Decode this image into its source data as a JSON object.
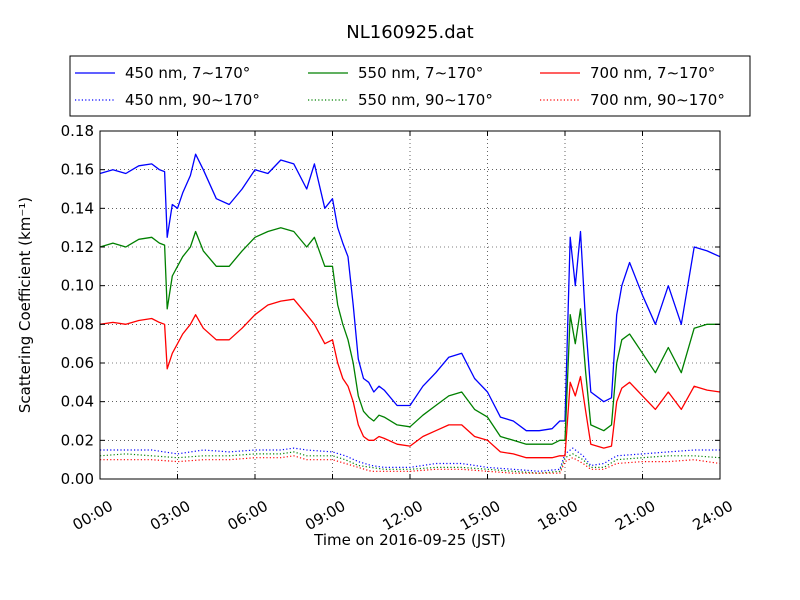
{
  "chart_data": {
    "type": "line",
    "title": "NL160925.dat",
    "xlabel": "Time on 2016-09-25 (JST)",
    "ylabel": "Scattering Coefficient (km⁻¹)",
    "xlim": [
      0,
      24
    ],
    "ylim": [
      0.0,
      0.18
    ],
    "x_tick_labels": [
      "00:00",
      "03:00",
      "06:00",
      "09:00",
      "12:00",
      "15:00",
      "18:00",
      "21:00",
      "24:00"
    ],
    "y_tick_labels": [
      "0.00",
      "0.02",
      "0.04",
      "0.06",
      "0.08",
      "0.10",
      "0.12",
      "0.14",
      "0.16",
      "0.18"
    ],
    "grid": true,
    "legend": "top, above plot, 3 columns",
    "x_unit": "hours",
    "series": [
      {
        "name": "450 nm, 7∼170°",
        "color": "#0000ff",
        "style": "solid",
        "x": [
          0,
          0.5,
          1,
          1.5,
          2,
          2.3,
          2.5,
          2.6,
          2.8,
          3,
          3.2,
          3.5,
          3.7,
          4,
          4.5,
          5,
          5.5,
          6,
          6.5,
          7,
          7.5,
          8,
          8.3,
          8.7,
          9,
          9.2,
          9.4,
          9.6,
          9.8,
          10,
          10.2,
          10.4,
          10.6,
          10.8,
          11,
          11.5,
          12,
          12.5,
          13,
          13.5,
          14,
          14.5,
          15,
          15.5,
          16,
          16.5,
          17,
          17.5,
          17.8,
          18,
          18.2,
          18.4,
          18.6,
          18.8,
          19,
          19.5,
          19.8,
          20,
          20.2,
          20.5,
          21,
          21.5,
          22,
          22.5,
          23,
          23.5,
          24
        ],
        "y": [
          0.158,
          0.16,
          0.158,
          0.162,
          0.163,
          0.16,
          0.159,
          0.125,
          0.142,
          0.14,
          0.148,
          0.157,
          0.168,
          0.16,
          0.145,
          0.142,
          0.15,
          0.16,
          0.158,
          0.165,
          0.163,
          0.15,
          0.163,
          0.14,
          0.145,
          0.13,
          0.122,
          0.115,
          0.09,
          0.062,
          0.052,
          0.05,
          0.045,
          0.048,
          0.046,
          0.038,
          0.038,
          0.048,
          0.055,
          0.063,
          0.065,
          0.052,
          0.045,
          0.032,
          0.03,
          0.025,
          0.025,
          0.026,
          0.03,
          0.03,
          0.125,
          0.1,
          0.128,
          0.08,
          0.045,
          0.04,
          0.042,
          0.085,
          0.1,
          0.112,
          0.095,
          0.08,
          0.1,
          0.08,
          0.12,
          0.118,
          0.115
        ]
      },
      {
        "name": "450 nm, 90∼170°",
        "color": "#0000ff",
        "style": "dotted",
        "x": [
          0,
          1,
          2,
          3,
          4,
          5,
          6,
          7,
          7.5,
          8,
          9,
          9.5,
          10,
          10.5,
          11,
          12,
          13,
          14,
          15,
          16,
          17,
          17.8,
          18,
          18.3,
          18.7,
          19,
          19.5,
          20,
          21,
          22,
          23,
          24
        ],
        "y": [
          0.015,
          0.015,
          0.015,
          0.013,
          0.015,
          0.014,
          0.015,
          0.015,
          0.016,
          0.015,
          0.014,
          0.012,
          0.009,
          0.007,
          0.006,
          0.006,
          0.008,
          0.008,
          0.006,
          0.005,
          0.004,
          0.005,
          0.013,
          0.016,
          0.012,
          0.007,
          0.008,
          0.012,
          0.013,
          0.014,
          0.015,
          0.015
        ]
      },
      {
        "name": "550 nm, 7∼170°",
        "color": "#008000",
        "style": "solid",
        "x": [
          0,
          0.5,
          1,
          1.5,
          2,
          2.3,
          2.5,
          2.6,
          2.8,
          3,
          3.2,
          3.5,
          3.7,
          4,
          4.5,
          5,
          5.5,
          6,
          6.5,
          7,
          7.5,
          8,
          8.3,
          8.7,
          9,
          9.2,
          9.4,
          9.6,
          9.8,
          10,
          10.2,
          10.4,
          10.6,
          10.8,
          11,
          11.5,
          12,
          12.5,
          13,
          13.5,
          14,
          14.5,
          15,
          15.5,
          16,
          16.5,
          17,
          17.5,
          17.8,
          18,
          18.2,
          18.4,
          18.6,
          18.8,
          19,
          19.5,
          19.8,
          20,
          20.2,
          20.5,
          21,
          21.5,
          22,
          22.5,
          23,
          23.5,
          24
        ],
        "y": [
          0.12,
          0.122,
          0.12,
          0.124,
          0.125,
          0.122,
          0.121,
          0.088,
          0.105,
          0.11,
          0.115,
          0.12,
          0.128,
          0.118,
          0.11,
          0.11,
          0.118,
          0.125,
          0.128,
          0.13,
          0.128,
          0.12,
          0.125,
          0.11,
          0.11,
          0.09,
          0.08,
          0.072,
          0.06,
          0.043,
          0.035,
          0.032,
          0.03,
          0.033,
          0.032,
          0.028,
          0.027,
          0.033,
          0.038,
          0.043,
          0.045,
          0.036,
          0.032,
          0.022,
          0.02,
          0.018,
          0.018,
          0.018,
          0.02,
          0.02,
          0.085,
          0.07,
          0.088,
          0.055,
          0.028,
          0.025,
          0.028,
          0.06,
          0.072,
          0.075,
          0.065,
          0.055,
          0.068,
          0.055,
          0.078,
          0.08,
          0.08
        ]
      },
      {
        "name": "550 nm, 90∼170°",
        "color": "#008000",
        "style": "dotted",
        "x": [
          0,
          1,
          2,
          3,
          4,
          5,
          6,
          7,
          7.5,
          8,
          9,
          9.5,
          10,
          10.5,
          11,
          12,
          13,
          14,
          15,
          16,
          17,
          17.8,
          18,
          18.3,
          18.7,
          19,
          19.5,
          20,
          21,
          22,
          23,
          24
        ],
        "y": [
          0.012,
          0.013,
          0.012,
          0.011,
          0.012,
          0.012,
          0.013,
          0.013,
          0.014,
          0.012,
          0.012,
          0.01,
          0.007,
          0.006,
          0.005,
          0.005,
          0.006,
          0.006,
          0.005,
          0.004,
          0.003,
          0.004,
          0.011,
          0.013,
          0.01,
          0.006,
          0.006,
          0.01,
          0.011,
          0.012,
          0.012,
          0.011
        ]
      },
      {
        "name": "700 nm, 7∼170°",
        "color": "#ff0000",
        "style": "solid",
        "x": [
          0,
          0.5,
          1,
          1.5,
          2,
          2.3,
          2.5,
          2.6,
          2.8,
          3,
          3.2,
          3.5,
          3.7,
          4,
          4.5,
          5,
          5.5,
          6,
          6.5,
          7,
          7.5,
          8,
          8.3,
          8.7,
          9,
          9.2,
          9.4,
          9.6,
          9.8,
          10,
          10.2,
          10.4,
          10.6,
          10.8,
          11,
          11.5,
          12,
          12.5,
          13,
          13.5,
          14,
          14.5,
          15,
          15.5,
          16,
          16.5,
          17,
          17.5,
          17.8,
          18,
          18.2,
          18.4,
          18.6,
          18.8,
          19,
          19.5,
          19.8,
          20,
          20.2,
          20.5,
          21,
          21.5,
          22,
          22.5,
          23,
          23.5,
          24
        ],
        "y": [
          0.08,
          0.081,
          0.08,
          0.082,
          0.083,
          0.081,
          0.08,
          0.057,
          0.065,
          0.07,
          0.075,
          0.08,
          0.085,
          0.078,
          0.072,
          0.072,
          0.078,
          0.085,
          0.09,
          0.092,
          0.093,
          0.085,
          0.08,
          0.07,
          0.072,
          0.06,
          0.052,
          0.048,
          0.04,
          0.028,
          0.022,
          0.02,
          0.02,
          0.022,
          0.021,
          0.018,
          0.017,
          0.022,
          0.025,
          0.028,
          0.028,
          0.022,
          0.02,
          0.014,
          0.013,
          0.011,
          0.011,
          0.011,
          0.012,
          0.012,
          0.05,
          0.043,
          0.053,
          0.035,
          0.018,
          0.016,
          0.017,
          0.04,
          0.047,
          0.05,
          0.043,
          0.036,
          0.045,
          0.036,
          0.048,
          0.046,
          0.045
        ]
      },
      {
        "name": "700 nm, 90∼170°",
        "color": "#ff0000",
        "style": "dotted",
        "x": [
          0,
          1,
          2,
          3,
          4,
          5,
          6,
          7,
          7.5,
          8,
          9,
          9.5,
          10,
          10.5,
          11,
          12,
          13,
          14,
          15,
          16,
          17,
          17.8,
          18,
          18.3,
          18.7,
          19,
          19.5,
          20,
          21,
          22,
          23,
          24
        ],
        "y": [
          0.01,
          0.01,
          0.01,
          0.009,
          0.01,
          0.01,
          0.011,
          0.011,
          0.012,
          0.01,
          0.01,
          0.008,
          0.006,
          0.004,
          0.004,
          0.004,
          0.005,
          0.005,
          0.004,
          0.003,
          0.003,
          0.003,
          0.009,
          0.011,
          0.008,
          0.005,
          0.005,
          0.008,
          0.009,
          0.009,
          0.01,
          0.008
        ]
      }
    ]
  }
}
